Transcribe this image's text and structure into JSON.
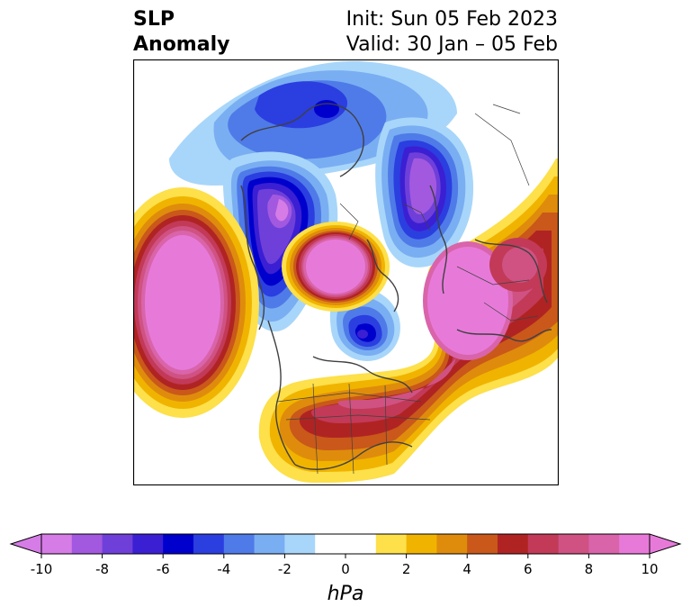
{
  "title": {
    "left_line1": "SLP",
    "left_line2": "Anomaly",
    "right_line1": "Init: Sun 05 Feb 2023",
    "right_line2": "Valid: 30 Jan – 05 Feb"
  },
  "map": {
    "projection": "north-polar-stereographic",
    "field": "sea level pressure anomaly",
    "features": [
      {
        "name": "north-pacific-high",
        "sign": "positive",
        "peak_hPa": 10
      },
      {
        "name": "arctic-high",
        "sign": "positive",
        "peak_hPa": 10
      },
      {
        "name": "north-atlantic-europe-high",
        "sign": "positive",
        "peak_hPa": 10
      },
      {
        "name": "eastern-us-high",
        "sign": "positive",
        "peak_hPa": 7
      },
      {
        "name": "eurasia-siberia-low",
        "sign": "negative",
        "peak_hPa": -10
      },
      {
        "name": "central-asia-low",
        "sign": "negative",
        "peak_hPa": -10
      },
      {
        "name": "hudson-bay-low",
        "sign": "negative",
        "peak_hPa": -7
      },
      {
        "name": "arctic-siberia-low",
        "sign": "negative",
        "peak_hPa": -7
      }
    ]
  },
  "colorbar": {
    "unit_label": "hPa",
    "ticks": [
      "-10",
      "-8",
      "-6",
      "-4",
      "-2",
      "0",
      "2",
      "4",
      "6",
      "8",
      "10"
    ],
    "bounds": [
      -10,
      -9,
      -8,
      -7,
      -6,
      -5,
      -4,
      -3,
      -2,
      -1,
      1,
      2,
      3,
      4,
      5,
      6,
      7,
      8,
      9,
      10
    ],
    "colors": [
      "#d67ce6",
      "#a259e0",
      "#6f3fd9",
      "#3b1fd3",
      "#0000cc",
      "#2b3ee0",
      "#4f7be8",
      "#7aaef2",
      "#a8d6fa",
      "#ffffff",
      "#fde04a",
      "#f0b400",
      "#df8c0c",
      "#c9581a",
      "#b02323",
      "#c23a58",
      "#cf5282",
      "#d964aa",
      "#e77ad9"
    ],
    "extend_min_color": "#d67ce6",
    "extend_max_color": "#e77ad9"
  }
}
